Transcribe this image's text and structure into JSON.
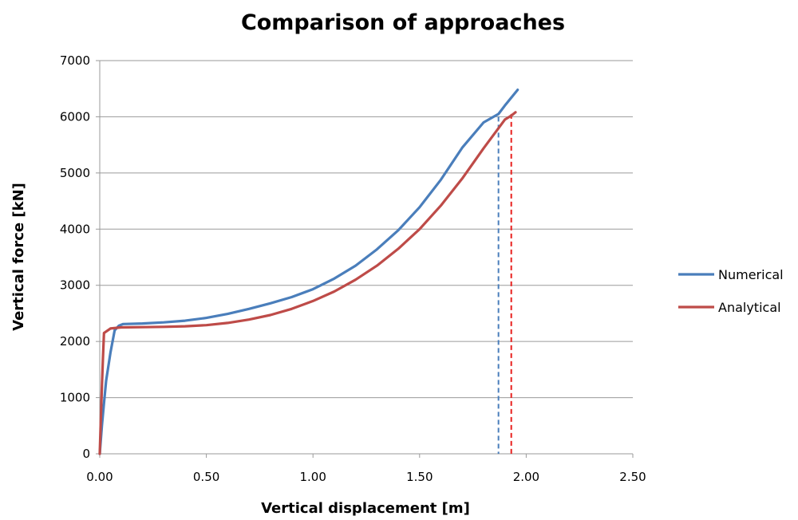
{
  "chart_data": {
    "type": "line",
    "title": "Comparison of approaches",
    "xlabel": "Vertical displacement [m]",
    "ylabel": "Vertical force [kN]",
    "xlim": [
      0,
      2.5
    ],
    "ylim": [
      0,
      7000
    ],
    "xticks": [
      0,
      0.5,
      1,
      1.5,
      2,
      2.5
    ],
    "xtick_labels": [
      "0.00",
      "0.50",
      "1.00",
      "1.50",
      "2.00",
      "2.50"
    ],
    "yticks": [
      0,
      1000,
      2000,
      3000,
      4000,
      5000,
      6000,
      7000
    ],
    "ytick_labels": [
      "0",
      "1000",
      "2000",
      "3000",
      "4000",
      "5000",
      "6000",
      "7000"
    ],
    "grid": "horizontal",
    "legend_position": "right",
    "series": [
      {
        "name": "Numerical",
        "color": "#4a7ebb",
        "x": [
          0,
          0.01,
          0.02,
          0.03,
          0.05,
          0.07,
          0.09,
          0.11,
          0.2,
          0.3,
          0.4,
          0.5,
          0.6,
          0.7,
          0.8,
          0.9,
          1.0,
          1.1,
          1.2,
          1.3,
          1.4,
          1.5,
          1.6,
          1.7,
          1.8,
          1.87,
          1.9,
          1.96
        ],
        "y": [
          0,
          500,
          900,
          1300,
          1800,
          2200,
          2280,
          2310,
          2320,
          2340,
          2370,
          2420,
          2490,
          2580,
          2680,
          2790,
          2930,
          3120,
          3350,
          3640,
          3980,
          4390,
          4880,
          5450,
          5900,
          6050,
          6200,
          6480
        ]
      },
      {
        "name": "Analytical",
        "color": "#be4b48",
        "x": [
          0,
          0.005,
          0.01,
          0.015,
          0.02,
          0.05,
          0.1,
          0.2,
          0.3,
          0.4,
          0.5,
          0.6,
          0.7,
          0.8,
          0.9,
          1.0,
          1.1,
          1.2,
          1.3,
          1.4,
          1.5,
          1.6,
          1.7,
          1.8,
          1.9,
          1.93,
          1.95
        ],
        "y": [
          0,
          600,
          1200,
          1700,
          2150,
          2230,
          2250,
          2255,
          2260,
          2270,
          2290,
          2330,
          2390,
          2470,
          2580,
          2720,
          2890,
          3100,
          3350,
          3650,
          4000,
          4420,
          4900,
          5440,
          5950,
          6020,
          6080
        ]
      }
    ],
    "reference_lines": [
      {
        "x": 1.87,
        "y_top": 6000,
        "color": "#4a7ebb",
        "style": "dashed"
      },
      {
        "x": 1.93,
        "y_top": 6050,
        "color": "#e8201e",
        "style": "dashed"
      }
    ]
  }
}
